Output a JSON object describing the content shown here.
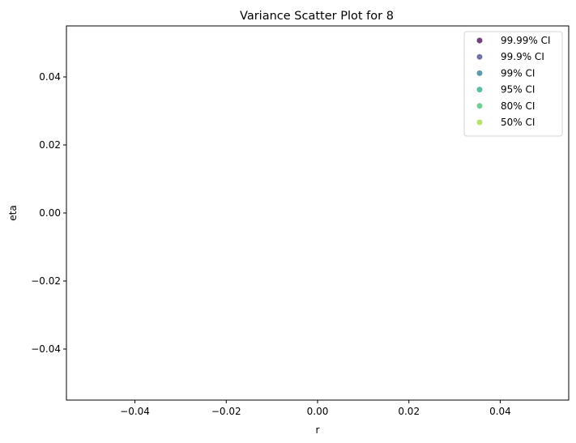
{
  "chart_data": {
    "type": "scatter",
    "title": "Variance Scatter Plot for 8",
    "xlabel": "r",
    "ylabel": "eta",
    "xlim": [
      -0.055,
      0.055
    ],
    "ylim": [
      -0.055,
      0.055
    ],
    "x_ticks": [
      -0.04,
      -0.02,
      0.0,
      0.02,
      0.04
    ],
    "x_tick_labels": [
      "−0.04",
      "−0.02",
      "0.00",
      "0.02",
      "0.04"
    ],
    "y_ticks": [
      -0.04,
      -0.02,
      0.0,
      0.02,
      0.04
    ],
    "y_tick_labels": [
      "−0.04",
      "−0.02",
      "0.00",
      "0.02",
      "0.04"
    ],
    "grid": false,
    "legend_position": "top-right",
    "series": [
      {
        "name": "99.99% CI",
        "color": "#440154",
        "points": []
      },
      {
        "name": "99.9% CI",
        "color": "#414487",
        "points": []
      },
      {
        "name": "99% CI",
        "color": "#2a788e",
        "points": []
      },
      {
        "name": "95% CI",
        "color": "#22a884",
        "points": []
      },
      {
        "name": "80% CI",
        "color": "#43bf71",
        "points": []
      },
      {
        "name": "50% CI",
        "color": "#a0da39",
        "points": []
      }
    ]
  }
}
